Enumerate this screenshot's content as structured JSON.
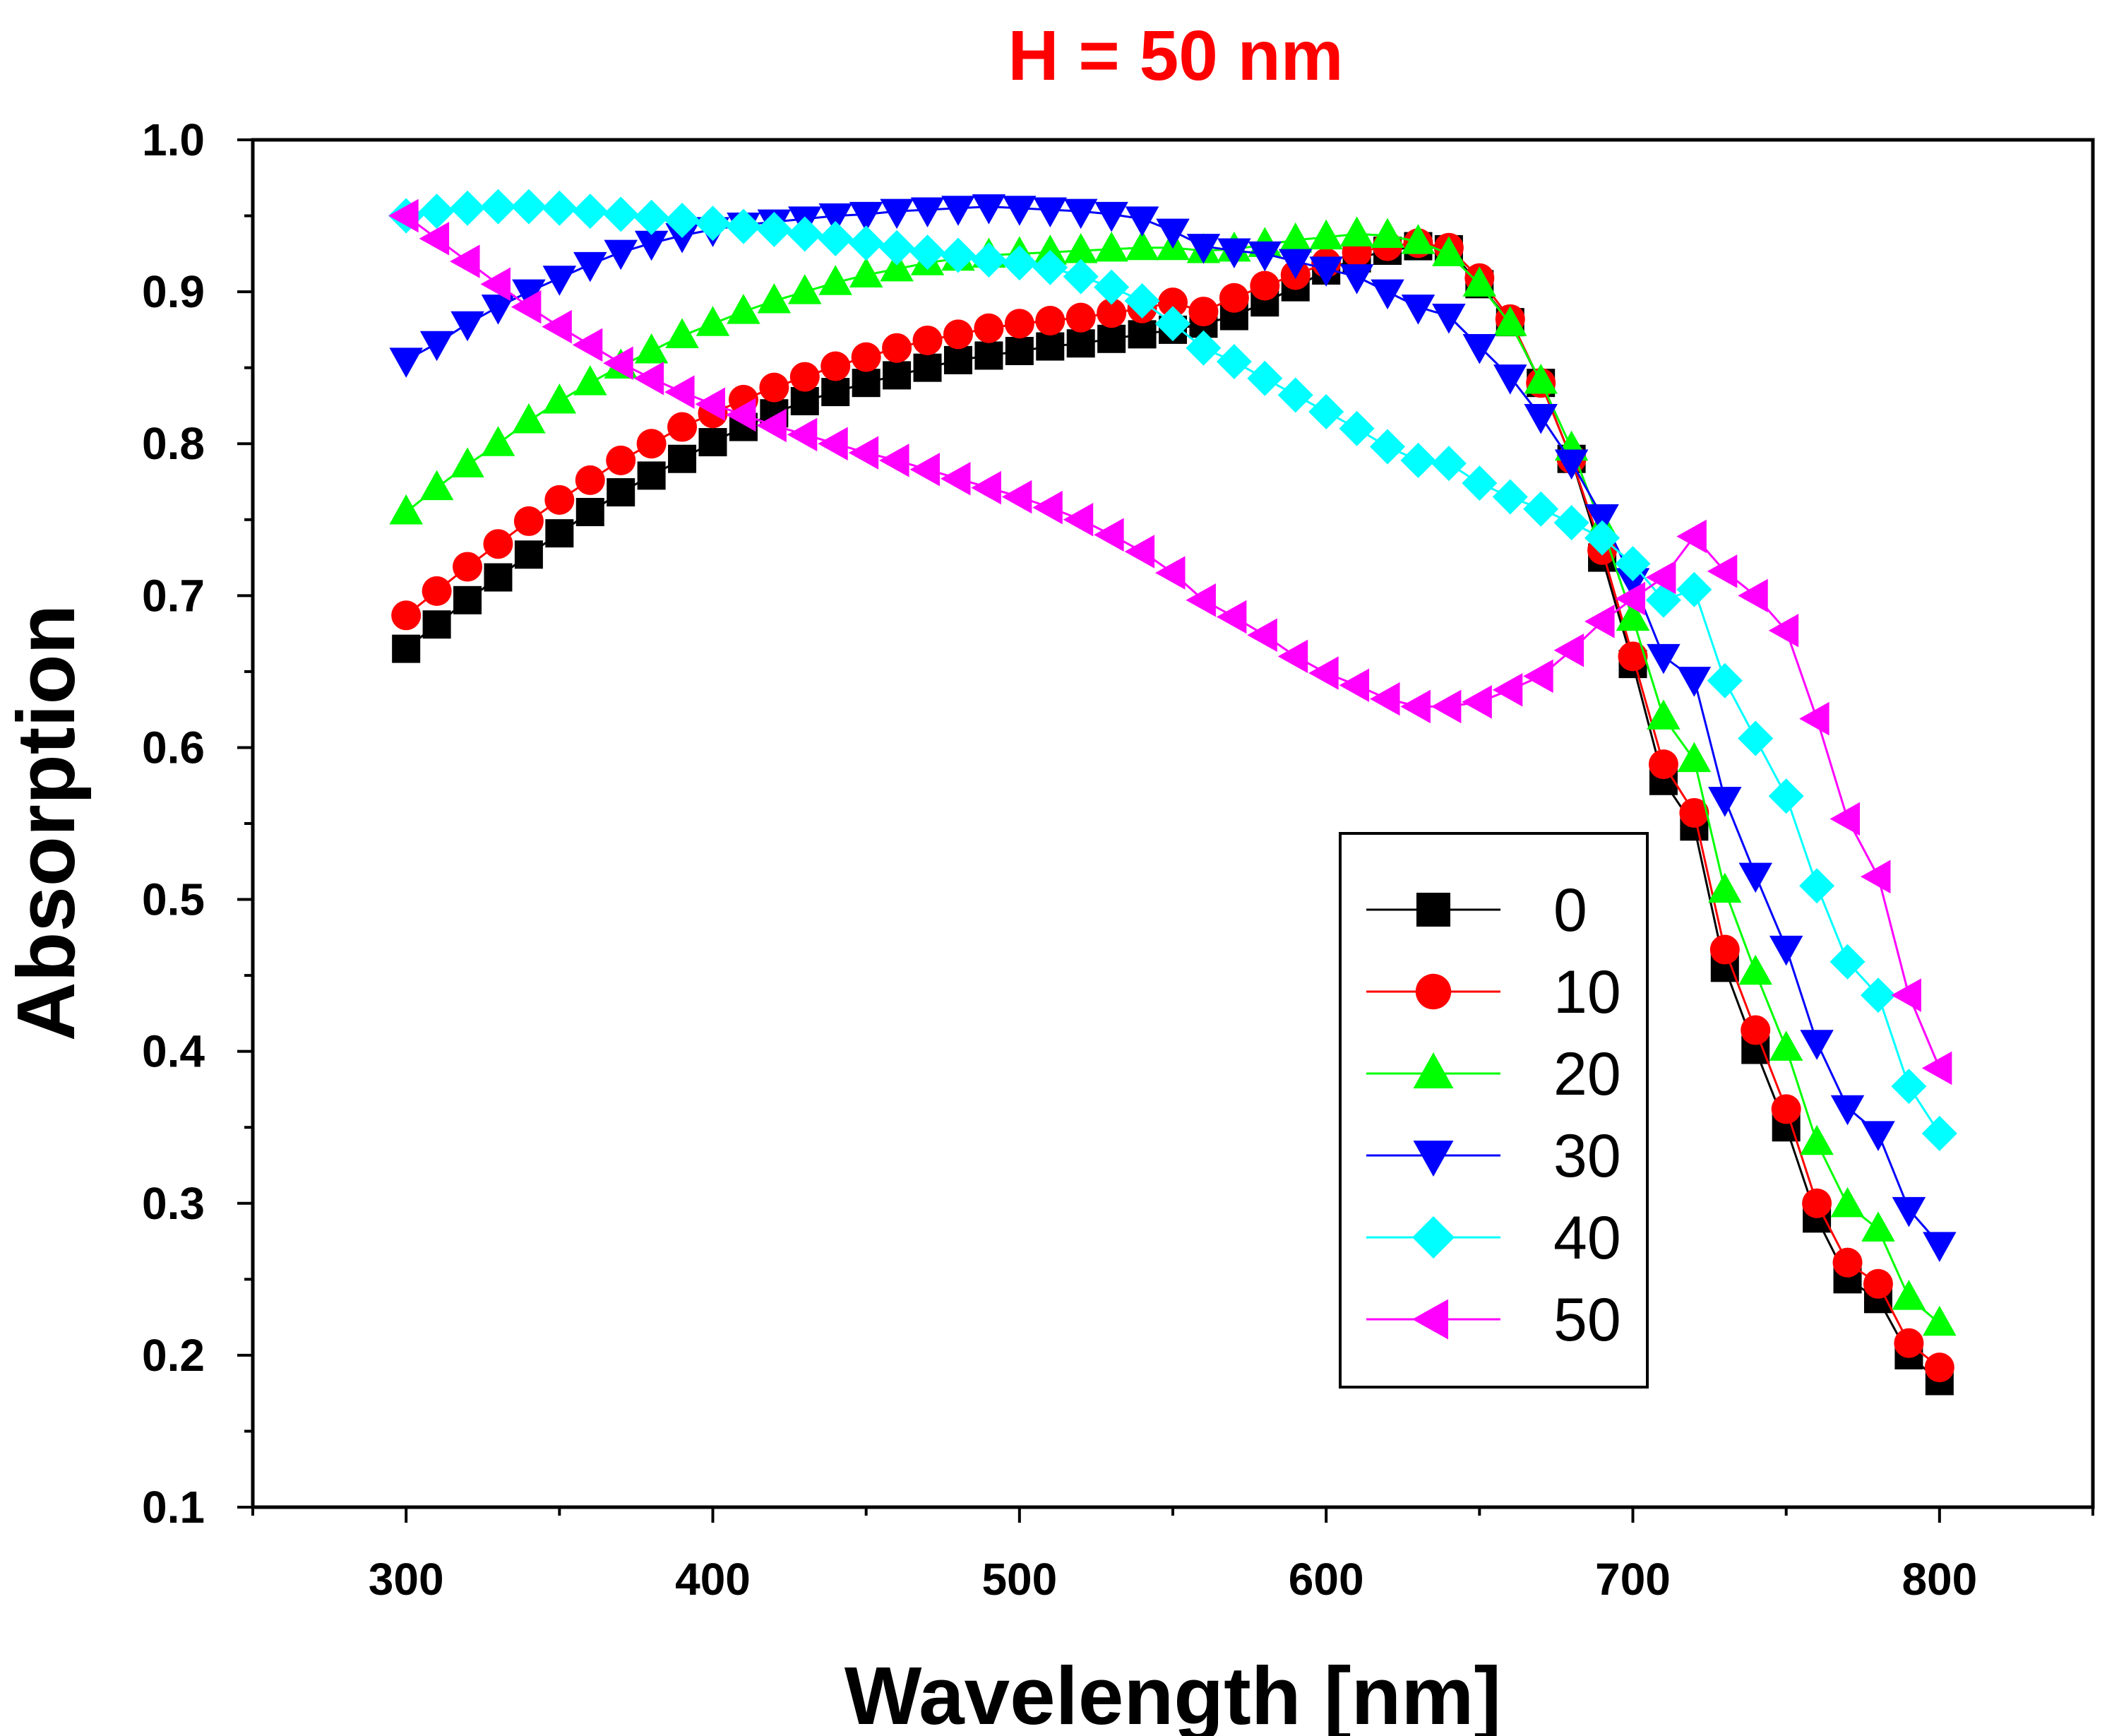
{
  "chart_data": {
    "type": "line",
    "title": "H = 50 nm",
    "title_color": "#ff0000",
    "xlabel": "Wavelength [nm]",
    "ylabel": "Absorption",
    "xlim": [
      250,
      850
    ],
    "ylim": [
      0.1,
      1.0
    ],
    "grid": false,
    "legend_position": "center-right",
    "x_ticks": [
      300,
      400,
      500,
      600,
      700,
      800
    ],
    "x_tick_labels": [
      "300",
      "400",
      "500",
      "600",
      "700",
      "800"
    ],
    "y_ticks": [
      0.1,
      0.2,
      0.3,
      0.4,
      0.5,
      0.6,
      0.7,
      0.8,
      0.9,
      1.0
    ],
    "y_tick_labels": [
      "0.1",
      "0.2",
      "0.3",
      "0.4",
      "0.5",
      "0.6",
      "0.7",
      "0.8",
      "0.9",
      "1.0"
    ],
    "x": [
      300,
      310,
      320,
      330,
      340,
      350,
      360,
      370,
      380,
      390,
      400,
      410,
      420,
      430,
      440,
      450,
      460,
      470,
      480,
      490,
      500,
      510,
      520,
      530,
      540,
      550,
      560,
      570,
      580,
      590,
      600,
      610,
      620,
      630,
      640,
      650,
      660,
      670,
      680,
      690,
      700,
      710,
      720,
      730,
      740,
      750,
      760,
      770,
      780,
      790,
      800
    ],
    "series": [
      {
        "name": "0",
        "color": "#000000",
        "marker": "square",
        "values": [
          0.665,
          0.681,
          0.697,
          0.712,
          0.727,
          0.741,
          0.755,
          0.768,
          0.779,
          0.79,
          0.801,
          0.811,
          0.82,
          0.828,
          0.834,
          0.84,
          0.845,
          0.85,
          0.855,
          0.858,
          0.861,
          0.864,
          0.866,
          0.869,
          0.872,
          0.875,
          0.879,
          0.884,
          0.893,
          0.903,
          0.914,
          0.922,
          0.927,
          0.93,
          0.928,
          0.905,
          0.88,
          0.84,
          0.79,
          0.725,
          0.655,
          0.578,
          0.548,
          0.455,
          0.401,
          0.35,
          0.29,
          0.25,
          0.237,
          0.2,
          0.183
        ]
      },
      {
        "name": "10",
        "color": "#ff0000",
        "marker": "circle",
        "values": [
          0.687,
          0.703,
          0.719,
          0.734,
          0.749,
          0.763,
          0.776,
          0.789,
          0.8,
          0.811,
          0.82,
          0.829,
          0.837,
          0.844,
          0.851,
          0.857,
          0.863,
          0.868,
          0.872,
          0.876,
          0.879,
          0.881,
          0.883,
          0.886,
          0.889,
          0.893,
          0.887,
          0.896,
          0.904,
          0.911,
          0.919,
          0.926,
          0.93,
          0.932,
          0.929,
          0.909,
          0.882,
          0.84,
          0.79,
          0.73,
          0.66,
          0.589,
          0.557,
          0.467,
          0.414,
          0.362,
          0.3,
          0.261,
          0.247,
          0.208,
          0.192
        ]
      },
      {
        "name": "20",
        "color": "#00ff00",
        "marker": "triangle-up",
        "values": [
          0.755,
          0.771,
          0.786,
          0.8,
          0.815,
          0.828,
          0.84,
          0.851,
          0.861,
          0.871,
          0.879,
          0.887,
          0.894,
          0.9,
          0.906,
          0.911,
          0.915,
          0.919,
          0.922,
          0.924,
          0.925,
          0.926,
          0.927,
          0.928,
          0.929,
          0.929,
          0.927,
          0.928,
          0.931,
          0.934,
          0.936,
          0.938,
          0.937,
          0.933,
          0.925,
          0.905,
          0.879,
          0.841,
          0.797,
          0.745,
          0.685,
          0.62,
          0.592,
          0.506,
          0.452,
          0.402,
          0.34,
          0.299,
          0.283,
          0.238,
          0.221
        ]
      },
      {
        "name": "30",
        "color": "#0000ff",
        "marker": "triangle-down",
        "values": [
          0.855,
          0.866,
          0.879,
          0.89,
          0.9,
          0.909,
          0.918,
          0.926,
          0.932,
          0.937,
          0.941,
          0.944,
          0.946,
          0.948,
          0.95,
          0.951,
          0.953,
          0.954,
          0.955,
          0.956,
          0.955,
          0.954,
          0.953,
          0.951,
          0.948,
          0.94,
          0.93,
          0.927,
          0.925,
          0.92,
          0.915,
          0.91,
          0.9,
          0.89,
          0.884,
          0.864,
          0.844,
          0.818,
          0.788,
          0.752,
          0.71,
          0.66,
          0.645,
          0.566,
          0.516,
          0.468,
          0.406,
          0.363,
          0.346,
          0.296,
          0.273
        ]
      },
      {
        "name": "40",
        "color": "#00ffff",
        "marker": "diamond",
        "values": [
          0.95,
          0.953,
          0.955,
          0.956,
          0.956,
          0.955,
          0.953,
          0.951,
          0.949,
          0.947,
          0.945,
          0.943,
          0.941,
          0.938,
          0.935,
          0.932,
          0.929,
          0.926,
          0.924,
          0.921,
          0.919,
          0.916,
          0.91,
          0.903,
          0.894,
          0.879,
          0.863,
          0.854,
          0.843,
          0.832,
          0.821,
          0.81,
          0.798,
          0.789,
          0.787,
          0.774,
          0.765,
          0.757,
          0.748,
          0.738,
          0.721,
          0.697,
          0.704,
          0.644,
          0.606,
          0.568,
          0.509,
          0.459,
          0.437,
          0.377,
          0.346
        ]
      },
      {
        "name": "50",
        "color": "#ff00ff",
        "marker": "triangle-left",
        "values": [
          0.95,
          0.935,
          0.92,
          0.905,
          0.89,
          0.877,
          0.865,
          0.853,
          0.843,
          0.834,
          0.826,
          0.819,
          0.812,
          0.806,
          0.8,
          0.794,
          0.789,
          0.783,
          0.777,
          0.771,
          0.765,
          0.758,
          0.75,
          0.74,
          0.729,
          0.715,
          0.697,
          0.686,
          0.674,
          0.66,
          0.649,
          0.641,
          0.632,
          0.627,
          0.627,
          0.63,
          0.638,
          0.647,
          0.664,
          0.683,
          0.698,
          0.712,
          0.739,
          0.716,
          0.7,
          0.677,
          0.619,
          0.553,
          0.515,
          0.437,
          0.389
        ]
      }
    ]
  }
}
